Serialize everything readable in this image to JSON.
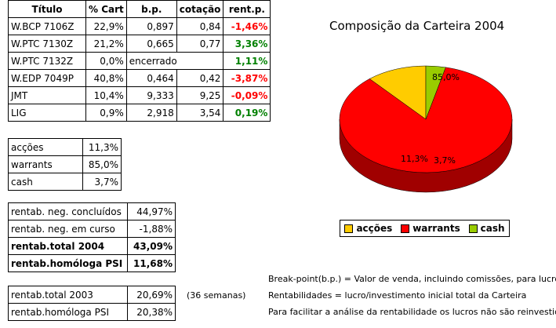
{
  "holdings_table": {
    "headers": [
      "Título",
      "% Cart",
      "b.p.",
      "cotação",
      "rent.p."
    ],
    "rows": [
      {
        "titulo": "W.BCP 7106Z",
        "cart": "22,9%",
        "bp": "0,897",
        "cotacao": "0,84",
        "rent": "-1,46%",
        "rent_sign": "neg"
      },
      {
        "titulo": "W.PTC 7130Z",
        "cart": "21,2%",
        "bp": "0,665",
        "cotacao": "0,77",
        "rent": "3,36%",
        "rent_sign": "pos"
      },
      {
        "titulo": "W.PTC 7132Z",
        "cart": "0,0%",
        "bp": "encerrado",
        "cotacao": "",
        "rent": "1,11%",
        "rent_sign": "pos"
      },
      {
        "titulo": "W.EDP 7049P",
        "cart": "40,8%",
        "bp": "0,464",
        "cotacao": "0,42",
        "rent": "-3,87%",
        "rent_sign": "neg"
      },
      {
        "titulo": "JMT",
        "cart": "10,4%",
        "bp": "9,333",
        "cotacao": "9,25",
        "rent": "-0,09%",
        "rent_sign": "neg"
      },
      {
        "titulo": "LIG",
        "cart": "0,9%",
        "bp": "2,918",
        "cotacao": "3,54",
        "rent": "0,19%",
        "rent_sign": "pos"
      }
    ]
  },
  "allocation_table": [
    {
      "label": "acções",
      "value": "11,3%"
    },
    {
      "label": "warrants",
      "value": "85,0%"
    },
    {
      "label": "cash",
      "value": "3,7%"
    }
  ],
  "returns_2004_table": [
    {
      "label": "rentab. neg. concluídos",
      "value": "44,97%"
    },
    {
      "label": "rentab. neg. em curso",
      "value": "-1,88%"
    },
    {
      "label": "rentab.total 2004",
      "value": "43,09%"
    },
    {
      "label": "rentab.homóloga PSI",
      "value": "11,68%"
    }
  ],
  "returns_2003_table": [
    {
      "label": "rentab.total 2003",
      "value": "20,69%"
    },
    {
      "label": "rentab.homóloga PSI",
      "value": "20,38%"
    }
  ],
  "weeks_note": "(36 semanas)",
  "notes": {
    "breakpoint": "Break-point(b.p.) = Valor de venda, incluindo comissões, para lucro zero.",
    "rentabilidades": "Rentabilidades = lucro/investimento inicial total da Carteira",
    "analysis": "Para facilitar a análise da rentabilidade os lucros não são reinvestidos."
  },
  "colors": {
    "accoes": "#ffcc00",
    "warrants": "#ff0000",
    "cash": "#99cc00",
    "negative": "#ff0000",
    "positive": "#008000"
  },
  "chart_data": {
    "type": "pie",
    "title": "Composição da Carteira 2004",
    "categories": [
      "acções",
      "warrants",
      "cash"
    ],
    "values": [
      11.3,
      85.0,
      3.7
    ],
    "data_labels": [
      "11,3%",
      "85,0%",
      "3,7%"
    ],
    "legend_position": "bottom",
    "style": "3d"
  }
}
